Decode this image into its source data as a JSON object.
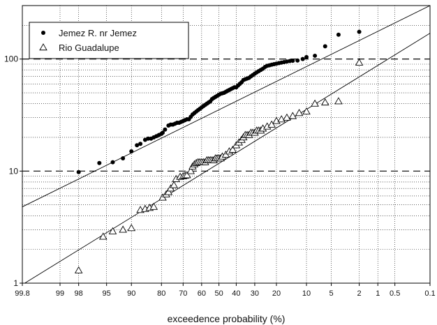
{
  "chart_data": {
    "type": "scatter",
    "title": "",
    "xlabel": "exceedence probability (%)",
    "ylabel": "",
    "x_scale": "normal-probability",
    "y_scale": "log",
    "xlim": [
      99.8,
      0.1
    ],
    "ylim": [
      1,
      300
    ],
    "x_ticks": [
      99.8,
      99,
      98,
      95,
      90,
      80,
      70,
      60,
      50,
      40,
      30,
      20,
      10,
      5,
      2,
      1,
      0.5,
      0.1
    ],
    "x_tick_labels": [
      "99.8",
      "99",
      "98",
      "95",
      "90",
      "80",
      "70",
      "60",
      "50",
      "40",
      "30",
      "20",
      "10",
      "5",
      "2",
      "1",
      "0.5",
      "0.1"
    ],
    "y_ticks": [
      1,
      10,
      100
    ],
    "y_tick_labels": [
      "1",
      "10",
      "100"
    ],
    "grid": true,
    "reference_lines": [
      10,
      100
    ],
    "legend_position": "top-left",
    "series": [
      {
        "name": "Jemez R. nr Jemez",
        "marker": "filled-circle",
        "color": "#000000",
        "x": [
          98,
          96,
          94,
          92,
          90,
          88.5,
          87.5,
          86,
          85,
          84,
          83,
          82,
          81,
          80,
          79.5,
          78.5,
          77,
          76,
          75,
          74,
          73,
          72,
          71,
          70,
          69,
          68,
          67,
          66,
          65,
          64,
          63,
          62,
          61,
          60,
          59,
          58,
          57,
          56,
          55,
          54,
          53,
          52,
          51,
          50,
          49,
          48,
          47,
          46,
          45,
          44,
          43,
          42,
          41,
          40,
          39,
          38,
          37,
          36,
          35,
          34,
          33,
          32,
          31,
          30,
          29,
          28,
          27,
          26,
          25,
          24,
          23,
          22,
          21,
          20,
          19,
          18,
          17,
          16,
          15,
          14,
          12.5,
          11,
          10,
          8,
          6,
          4,
          2
        ],
        "values": [
          9.8,
          11.8,
          12,
          13,
          15,
          17,
          17.5,
          19,
          19.5,
          19.5,
          20,
          20.5,
          21,
          21.5,
          22,
          23.5,
          25.5,
          26,
          26,
          26.5,
          27,
          27,
          27.5,
          28,
          28.5,
          29,
          29,
          30.5,
          32,
          33,
          34,
          35,
          36,
          37,
          38,
          39,
          40,
          41,
          42,
          44,
          45,
          46,
          47,
          48,
          49,
          49.5,
          50,
          51,
          52,
          53,
          54,
          55,
          56,
          56,
          58,
          60,
          62,
          65,
          66,
          67,
          68,
          70,
          72,
          74,
          76,
          78,
          80,
          82,
          85,
          87,
          88,
          89,
          90,
          91,
          92,
          93,
          94,
          95,
          96,
          96.5,
          97,
          100,
          104,
          107,
          130,
          165,
          175
        ]
      },
      {
        "name": "Rio Guadalupe",
        "marker": "open-triangle",
        "color": "#000000",
        "x": [
          98,
          95.5,
          94,
          92,
          90,
          87.5,
          86,
          84.5,
          83,
          79.5,
          78,
          77,
          76,
          74.5,
          73.5,
          71.5,
          70,
          69,
          68,
          66,
          65,
          64,
          63,
          62,
          61,
          60,
          59,
          58,
          57,
          56,
          55,
          54,
          53,
          52,
          51,
          50,
          49,
          48,
          46,
          44,
          42,
          40,
          38.5,
          37,
          36,
          35,
          34,
          33,
          32,
          31,
          30,
          29,
          28,
          27,
          26,
          24,
          22,
          20,
          18,
          16,
          14,
          12,
          10,
          8,
          6,
          4,
          2
        ],
        "values": [
          1.3,
          2.6,
          2.9,
          3.0,
          3.1,
          4.5,
          4.6,
          4.7,
          4.8,
          5.8,
          6.2,
          6.5,
          7.0,
          7.5,
          8.5,
          8.9,
          9.0,
          9.1,
          9.2,
          10,
          11,
          11.5,
          11.8,
          12,
          12,
          12,
          12,
          12,
          12.5,
          12.5,
          12.5,
          12.5,
          12.5,
          13,
          13,
          13,
          13,
          13.5,
          14,
          15,
          15.5,
          17,
          18,
          19,
          20,
          21,
          21,
          21,
          22,
          22,
          22,
          23,
          23,
          23,
          24,
          25,
          26,
          28,
          29,
          30,
          31,
          33,
          34,
          40,
          41,
          42,
          93
        ]
      }
    ],
    "fit_lines": [
      {
        "series": "Jemez R. nr Jemez",
        "from": [
          99.8,
          4.8
        ],
        "to": [
          0.1,
          300
        ]
      },
      {
        "series": "Rio Guadalupe",
        "from": [
          99.8,
          0.97
        ],
        "to": [
          0.1,
          170
        ]
      }
    ]
  }
}
